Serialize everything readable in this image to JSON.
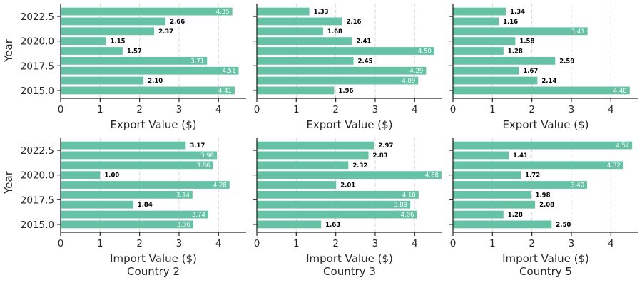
{
  "figure": {
    "y_axis_title": "Year",
    "colors": {
      "bar": "#66c2a5",
      "grid": "#d9d9d9",
      "axis": "#262626"
    }
  },
  "chart_data": [
    {
      "type": "bar",
      "orientation": "horizontal",
      "grid": "x-dashed",
      "xlabel": "Export Value ($)",
      "column_title": "",
      "xlim": [
        0,
        4.7
      ],
      "ylim": [
        2014.2,
        2023.8
      ],
      "xticks": [
        "0",
        "1",
        "2",
        "3",
        "4"
      ],
      "yticks": [
        "2015.0",
        "2017.5",
        "2020.0",
        "2022.5"
      ],
      "years": [
        2015,
        2016,
        2017,
        2018,
        2019,
        2020,
        2021,
        2022,
        2023
      ],
      "values": [
        4.41,
        2.1,
        4.51,
        3.71,
        1.57,
        1.15,
        2.37,
        2.66,
        4.35
      ],
      "labels": [
        "4.41",
        "2.10",
        "4.51",
        "3.71",
        "1.57",
        "1.15",
        "2.37",
        "2.66",
        "4.35"
      ]
    },
    {
      "type": "bar",
      "orientation": "horizontal",
      "grid": "x-dashed",
      "xlabel": "Export Value ($)",
      "column_title": "",
      "xlim": [
        0,
        4.7
      ],
      "ylim": [
        2014.2,
        2023.8
      ],
      "xticks": [
        "0",
        "1",
        "2",
        "3",
        "4"
      ],
      "yticks": [
        "2015.0",
        "2017.5",
        "2020.0",
        "2022.5"
      ],
      "years": [
        2015,
        2016,
        2017,
        2018,
        2019,
        2020,
        2021,
        2022,
        2023
      ],
      "values": [
        1.96,
        4.09,
        4.29,
        2.45,
        4.5,
        2.41,
        1.68,
        2.16,
        1.33
      ],
      "labels": [
        "1.96",
        "4.09",
        "4.29",
        "2.45",
        "4.50",
        "2.41",
        "1.68",
        "2.16",
        "1.33"
      ]
    },
    {
      "type": "bar",
      "orientation": "horizontal",
      "grid": "x-dashed",
      "xlabel": "Export Value ($)",
      "column_title": "",
      "xlim": [
        0,
        4.7
      ],
      "ylim": [
        2014.2,
        2023.8
      ],
      "xticks": [
        "0",
        "1",
        "2",
        "3",
        "4"
      ],
      "yticks": [
        "2015.0",
        "2017.5",
        "2020.0",
        "2022.5"
      ],
      "years": [
        2015,
        2016,
        2017,
        2018,
        2019,
        2020,
        2021,
        2022,
        2023
      ],
      "values": [
        4.48,
        2.14,
        1.67,
        2.59,
        1.28,
        1.58,
        3.41,
        1.16,
        1.34
      ],
      "labels": [
        "4.48",
        "2.14",
        "1.67",
        "2.59",
        "1.28",
        "1.58",
        "3.41",
        "1.16",
        "1.34"
      ]
    },
    {
      "type": "bar",
      "orientation": "horizontal",
      "grid": "x-dashed",
      "xlabel": "Import Value ($)",
      "column_title": "Country 2",
      "xlim": [
        0,
        4.7
      ],
      "ylim": [
        2014.2,
        2023.8
      ],
      "xticks": [
        "0",
        "1",
        "2",
        "3",
        "4"
      ],
      "yticks": [
        "2015.0",
        "2017.5",
        "2020.0",
        "2022.5"
      ],
      "years": [
        2015,
        2016,
        2017,
        2018,
        2019,
        2020,
        2021,
        2022,
        2023
      ],
      "values": [
        3.36,
        3.74,
        1.84,
        3.34,
        4.28,
        1.0,
        3.86,
        3.96,
        3.17
      ],
      "labels": [
        "3.36",
        "3.74",
        "1.84",
        "3.34",
        "4.28",
        "1.00",
        "3.86",
        "3.96",
        "3.17"
      ]
    },
    {
      "type": "bar",
      "orientation": "horizontal",
      "grid": "x-dashed",
      "xlabel": "Import Value ($)",
      "column_title": "Country 3",
      "xlim": [
        0,
        4.7
      ],
      "ylim": [
        2014.2,
        2023.8
      ],
      "xticks": [
        "0",
        "1",
        "2",
        "3",
        "4"
      ],
      "yticks": [
        "2015.0",
        "2017.5",
        "2020.0",
        "2022.5"
      ],
      "years": [
        2015,
        2016,
        2017,
        2018,
        2019,
        2020,
        2021,
        2022,
        2023
      ],
      "values": [
        1.63,
        4.06,
        3.89,
        4.1,
        2.01,
        4.68,
        2.32,
        2.83,
        2.97
      ],
      "labels": [
        "1.63",
        "4.06",
        "3.89",
        "4.10",
        "2.01",
        "4.68",
        "2.32",
        "2.83",
        "2.97"
      ]
    },
    {
      "type": "bar",
      "orientation": "horizontal",
      "grid": "x-dashed",
      "xlabel": "Import Value ($)",
      "column_title": "Country 5",
      "xlim": [
        0,
        4.7
      ],
      "ylim": [
        2014.2,
        2023.8
      ],
      "xticks": [
        "0",
        "1",
        "2",
        "3",
        "4"
      ],
      "yticks": [
        "2015.0",
        "2017.5",
        "2020.0",
        "2022.5"
      ],
      "years": [
        2015,
        2016,
        2017,
        2018,
        2019,
        2020,
        2021,
        2022,
        2023
      ],
      "values": [
        2.5,
        1.28,
        2.08,
        1.98,
        3.4,
        1.72,
        4.32,
        1.41,
        4.54
      ],
      "labels": [
        "2.50",
        "1.28",
        "2.08",
        "1.98",
        "3.40",
        "1.72",
        "4.32",
        "1.41",
        "4.54"
      ]
    }
  ]
}
